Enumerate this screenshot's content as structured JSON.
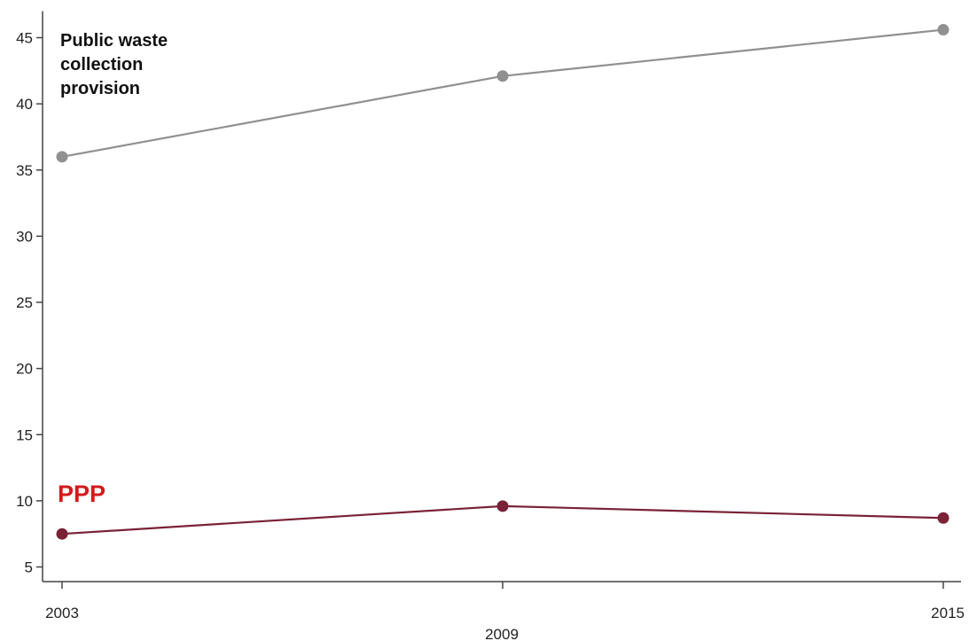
{
  "chart_data": {
    "type": "line",
    "title": "",
    "xlabel": "",
    "ylabel": "",
    "x": [
      2003,
      2009,
      2015
    ],
    "x_tick_labels": [
      "2003",
      "2009",
      "2015"
    ],
    "y_ticks": [
      5,
      10,
      15,
      20,
      25,
      30,
      35,
      40,
      45
    ],
    "y_tick_labels": [
      "5",
      "10",
      "15",
      "20",
      "25",
      "30",
      "35",
      "40",
      "45"
    ],
    "ylim": [
      3.2,
      47
    ],
    "xlim": [
      2003,
      2015
    ],
    "grid": false,
    "legend": "none",
    "series": [
      {
        "name": "Public waste collection provision",
        "label_lines": [
          "Public waste",
          "collection",
          "provision"
        ],
        "values": [
          36.0,
          42.1,
          45.6
        ],
        "color": "#909090",
        "label_color": "#111111"
      },
      {
        "name": "PPP",
        "label_lines": [
          "PPP"
        ],
        "values": [
          7.5,
          9.6,
          8.7
        ],
        "color": "#7a2236",
        "label_color": "#d11b1b"
      }
    ]
  }
}
